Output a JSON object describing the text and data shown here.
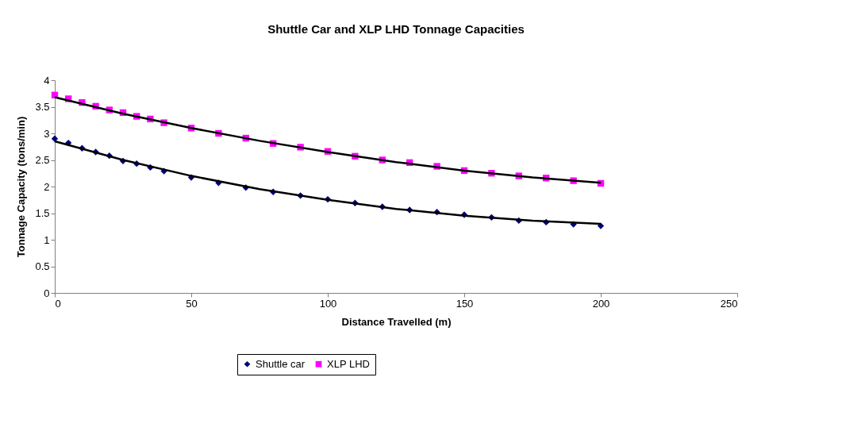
{
  "chart_data": {
    "type": "scatter",
    "title": "Shuttle Car and XLP LHD Tonnage Capacities",
    "xlabel": "Distance Travelled (m)",
    "ylabel": "Tonnage Capacity (tons/min)",
    "x": [
      0,
      5,
      10,
      15,
      20,
      25,
      30,
      35,
      40,
      50,
      60,
      70,
      80,
      90,
      100,
      110,
      120,
      130,
      140,
      150,
      160,
      170,
      180,
      190,
      200
    ],
    "series": [
      {
        "name": "Shuttle car",
        "color": "#000080",
        "marker": "diamond",
        "values": [
          2.9,
          2.82,
          2.72,
          2.65,
          2.58,
          2.48,
          2.43,
          2.36,
          2.29,
          2.17,
          2.07,
          1.98,
          1.9,
          1.83,
          1.76,
          1.69,
          1.62,
          1.56,
          1.52,
          1.47,
          1.42,
          1.36,
          1.33,
          1.29,
          1.26
        ]
      },
      {
        "name": "XLP LHD",
        "color": "#ff00ff",
        "marker": "square",
        "values": [
          3.72,
          3.65,
          3.58,
          3.51,
          3.44,
          3.39,
          3.32,
          3.27,
          3.2,
          3.1,
          3.0,
          2.91,
          2.81,
          2.74,
          2.66,
          2.57,
          2.5,
          2.45,
          2.38,
          2.3,
          2.25,
          2.2,
          2.16,
          2.11,
          2.06
        ]
      },
      {
        "type": "line",
        "color": "#000000",
        "x": [
          0,
          25,
          50,
          75,
          100,
          125,
          150,
          175,
          200
        ],
        "values": [
          2.85,
          2.5,
          2.2,
          1.95,
          1.75,
          1.58,
          1.45,
          1.36,
          1.3
        ]
      },
      {
        "type": "line",
        "color": "#000000",
        "x": [
          0,
          25,
          50,
          75,
          100,
          125,
          150,
          175,
          200
        ],
        "values": [
          3.68,
          3.37,
          3.1,
          2.86,
          2.65,
          2.46,
          2.3,
          2.17,
          2.07
        ]
      }
    ],
    "xlim": [
      0,
      250
    ],
    "xticks": [
      0,
      50,
      100,
      150,
      200,
      250
    ],
    "ylim": [
      0,
      4
    ],
    "yticks": [
      0,
      0.5,
      1,
      1.5,
      2,
      2.5,
      3,
      3.5,
      4
    ],
    "grid": false,
    "legend": "bottom"
  }
}
